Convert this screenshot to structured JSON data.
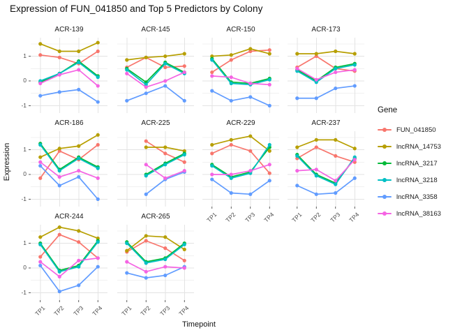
{
  "title": "Expression of FUN_041850 and Top 5 Predictors by Colony",
  "chart_data": {
    "type": "line",
    "title": "Expression of FUN_041850 and Top 5 Predictors by Colony",
    "xlabel": "Timepoint",
    "ylabel": "Expression",
    "x": [
      "TP1",
      "TP2",
      "TP3",
      "TP4"
    ],
    "ylim": [
      -1.3,
      1.75
    ],
    "yticks": [
      -1,
      0,
      1
    ],
    "yticks_minor": [
      -0.5,
      0.5,
      1.5
    ],
    "grid": true,
    "legend": {
      "title": "Gene",
      "position": "right"
    },
    "genes": [
      {
        "name": "FUN_041850",
        "color": "#F8766D"
      },
      {
        "name": "lncRNA_14753",
        "color": "#B79F00"
      },
      {
        "name": "lncRNA_3217",
        "color": "#00BA38"
      },
      {
        "name": "lncRNA_3218",
        "color": "#00BFC4"
      },
      {
        "name": "lncRNA_3358",
        "color": "#619CFF"
      },
      {
        "name": "lncRNA_38163",
        "color": "#F564E3"
      }
    ],
    "facets": [
      {
        "colony": "ACR-139",
        "series": {
          "FUN_041850": [
            1.05,
            0.95,
            0.7,
            1.2
          ],
          "lncRNA_14753": [
            1.5,
            1.2,
            1.2,
            1.55
          ],
          "lncRNA_3217": [
            -0.05,
            0.3,
            0.8,
            0.2
          ],
          "lncRNA_3218": [
            0.0,
            0.3,
            0.75,
            0.15
          ],
          "lncRNA_3358": [
            -0.6,
            -0.45,
            -0.35,
            -0.85
          ],
          "lncRNA_38163": [
            -0.1,
            0.25,
            0.45,
            -0.2
          ]
        }
      },
      {
        "colony": "ACR-145",
        "series": {
          "FUN_041850": [
            0.55,
            0.95,
            0.55,
            0.6
          ],
          "lncRNA_14753": [
            0.85,
            0.95,
            1.0,
            1.1
          ],
          "lncRNA_3217": [
            0.5,
            -0.05,
            0.75,
            0.35
          ],
          "lncRNA_3218": [
            0.45,
            -0.15,
            0.7,
            0.3
          ],
          "lncRNA_3358": [
            -0.8,
            -0.5,
            -0.2,
            -0.8
          ],
          "lncRNA_38163": [
            0.3,
            -0.25,
            0.0,
            0.35
          ]
        }
      },
      {
        "colony": "ACR-150",
        "series": {
          "FUN_041850": [
            0.35,
            0.85,
            1.2,
            1.25
          ],
          "lncRNA_14753": [
            1.0,
            1.05,
            1.3,
            1.1
          ],
          "lncRNA_3217": [
            0.9,
            -0.05,
            -0.1,
            0.1
          ],
          "lncRNA_3218": [
            0.85,
            -0.1,
            -0.15,
            0.05
          ],
          "lncRNA_3358": [
            -0.4,
            -0.8,
            -0.65,
            -1.0
          ],
          "lncRNA_38163": [
            0.2,
            0.15,
            -0.1,
            -0.15
          ]
        }
      },
      {
        "colony": "ACR-173",
        "series": {
          "FUN_041850": [
            0.55,
            1.0,
            0.5,
            0.4
          ],
          "lncRNA_14753": [
            1.1,
            1.1,
            1.2,
            1.1
          ],
          "lncRNA_3217": [
            0.45,
            0.0,
            0.55,
            0.7
          ],
          "lncRNA_3218": [
            0.4,
            -0.05,
            0.5,
            0.65
          ],
          "lncRNA_3358": [
            -0.7,
            -0.7,
            -0.3,
            -0.2
          ],
          "lncRNA_38163": [
            0.5,
            0.05,
            0.35,
            0.45
          ]
        }
      },
      {
        "colony": "ACR-186",
        "series": {
          "FUN_041850": [
            -0.15,
            0.95,
            0.6,
            1.2
          ],
          "lncRNA_14753": [
            0.7,
            1.05,
            1.15,
            1.6
          ],
          "lncRNA_3217": [
            1.25,
            0.2,
            0.7,
            0.3
          ],
          "lncRNA_3218": [
            1.2,
            0.15,
            0.65,
            0.25
          ],
          "lncRNA_3358": [
            0.35,
            -0.45,
            -0.1,
            -1.0
          ],
          "lncRNA_38163": [
            0.5,
            -0.1,
            0.15,
            -0.15
          ]
        }
      },
      {
        "colony": "ACR-225",
        "series": {
          "FUN_041850": [
            null,
            1.35,
            0.85,
            0.5
          ],
          "lncRNA_14753": [
            null,
            1.1,
            1.1,
            0.95
          ],
          "lncRNA_3217": [
            null,
            0.0,
            0.45,
            0.85
          ],
          "lncRNA_3218": [
            null,
            -0.05,
            0.4,
            0.8
          ],
          "lncRNA_3358": [
            null,
            -0.8,
            -0.2,
            0.1
          ],
          "lncRNA_38163": [
            null,
            0.4,
            -0.15,
            0.15
          ]
        }
      },
      {
        "colony": "ACR-229",
        "series": {
          "FUN_041850": [
            0.85,
            1.2,
            0.95,
            0.05
          ],
          "lncRNA_14753": [
            1.2,
            1.4,
            1.55,
            0.95
          ],
          "lncRNA_3217": [
            0.4,
            -0.1,
            0.1,
            1.1
          ],
          "lncRNA_3218": [
            0.35,
            -0.15,
            0.05,
            1.2
          ],
          "lncRNA_3358": [
            -0.2,
            -0.75,
            -0.8,
            -0.25
          ],
          "lncRNA_38163": [
            0.0,
            0.0,
            0.15,
            0.4
          ]
        }
      },
      {
        "colony": "ACR-237",
        "series": {
          "FUN_041850": [
            0.65,
            1.1,
            0.75,
            0.5
          ],
          "lncRNA_14753": [
            1.1,
            1.4,
            1.4,
            1.05
          ],
          "lncRNA_3217": [
            0.8,
            0.0,
            -0.35,
            0.65
          ],
          "lncRNA_3218": [
            0.75,
            -0.05,
            -0.4,
            0.7
          ],
          "lncRNA_3358": [
            -0.45,
            -0.8,
            -0.75,
            -0.15
          ],
          "lncRNA_38163": [
            0.15,
            0.2,
            -0.25,
            0.6
          ]
        }
      },
      {
        "colony": "ACR-244",
        "series": {
          "FUN_041850": [
            0.45,
            1.35,
            1.05,
            0.4
          ],
          "lncRNA_14753": [
            1.25,
            1.65,
            1.5,
            1.2
          ],
          "lncRNA_3217": [
            1.0,
            -0.1,
            0.1,
            1.1
          ],
          "lncRNA_3218": [
            0.95,
            -0.15,
            0.05,
            1.05
          ],
          "lncRNA_3358": [
            0.1,
            -0.95,
            -0.7,
            0.05
          ],
          "lncRNA_38163": [
            0.25,
            -0.35,
            0.3,
            0.4
          ]
        }
      },
      {
        "colony": "ACR-265",
        "series": {
          "FUN_041850": [
            0.65,
            1.1,
            0.8,
            0.3
          ],
          "lncRNA_14753": [
            0.7,
            1.3,
            1.25,
            0.75
          ],
          "lncRNA_3217": [
            1.05,
            0.25,
            0.4,
            1.0
          ],
          "lncRNA_3218": [
            1.0,
            0.2,
            0.35,
            0.95
          ],
          "lncRNA_3358": [
            -0.2,
            -0.4,
            -0.3,
            0.05
          ],
          "lncRNA_38163": [
            0.25,
            -0.15,
            0.05,
            0.0
          ]
        }
      }
    ],
    "style": {
      "grid_major_color": "#e3e3e3",
      "grid_minor_color": "#f1f1f1",
      "tick_color": "#333333",
      "tick_label_color": "#4d4d4d"
    }
  }
}
